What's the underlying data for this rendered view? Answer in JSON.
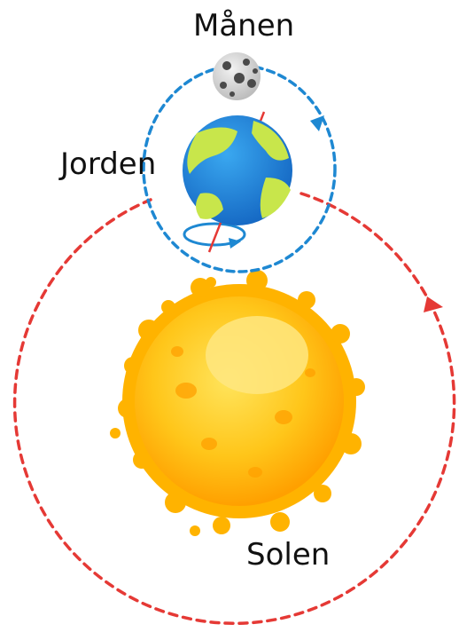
{
  "labels": {
    "moon": "Månen",
    "earth": "Jorden",
    "sun": "Solen"
  },
  "icons": {
    "moon": "moon-icon",
    "earth": "earth-icon",
    "sun": "sun-icon"
  },
  "colors": {
    "earth_orbit": "#e53935",
    "moon_orbit": "#1e88d2",
    "earth_ocean": "#1f8fe0",
    "earth_land": "#c8e64b",
    "sun_core": "#ffc61a",
    "sun_flare": "#ffb300",
    "moon_surface": "#d4d4d4"
  }
}
